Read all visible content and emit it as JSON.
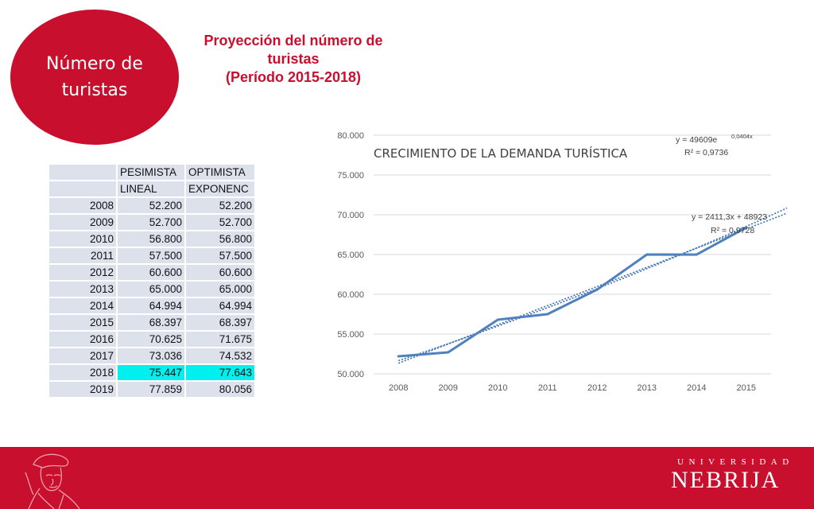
{
  "badge": {
    "title": "Número de turistas"
  },
  "slide_title": {
    "line1": "Proyección del número de",
    "line2": "turistas",
    "line3": "(Período 2015-2018)"
  },
  "table": {
    "headers": [
      [
        "",
        "PESIMISTA",
        "OPTIMISTA"
      ],
      [
        "",
        "LINEAL",
        "EXPONENC"
      ]
    ],
    "rows": [
      [
        "2008",
        "52.200",
        "52.200"
      ],
      [
        "2009",
        "52.700",
        "52.700"
      ],
      [
        "2010",
        "56.800",
        "56.800"
      ],
      [
        "2011",
        "57.500",
        "57.500"
      ],
      [
        "2012",
        "60.600",
        "60.600"
      ],
      [
        "2013",
        "65.000",
        "65.000"
      ],
      [
        "2014",
        "64.994",
        "64.994"
      ],
      [
        "2015",
        "68.397",
        "68.397"
      ],
      [
        "2016",
        "70.625",
        "71.675"
      ],
      [
        "2017",
        "73.036",
        "74.532"
      ],
      [
        "2018",
        "75.447",
        "77.643"
      ],
      [
        "2019",
        "77.859",
        "80.056"
      ]
    ],
    "highlight_row": "2018",
    "highlight_color": "#00f0f0"
  },
  "chart_data": {
    "type": "line",
    "title": "CRECIMIENTO DE LA DEMANDA TURÍSTICA",
    "categories": [
      "2008",
      "2009",
      "2010",
      "2011",
      "2012",
      "2013",
      "2014",
      "2015"
    ],
    "series": [
      {
        "values": [
          52200,
          52700,
          56800,
          57500,
          60600,
          65000,
          64994,
          68397
        ],
        "color": "#4f81bd"
      }
    ],
    "trendlines": [
      {
        "type": "exponential",
        "equation": "y = 49609e",
        "exponent": "0,0404x",
        "r2": "R² = 0,9736",
        "a": 49609,
        "b": 0.0404,
        "x_extend_to": 9
      },
      {
        "type": "linear",
        "equation": "y = 2411,3x + 48923",
        "r2": "R² = 0,9728",
        "slope": 2411.3,
        "intercept": 48923,
        "x_extend_to": 9
      }
    ],
    "ylim": [
      50000,
      80000
    ],
    "yticks": [
      "50.000",
      "55.000",
      "60.000",
      "65.000",
      "70.000",
      "75.000",
      "80.000"
    ],
    "grid": true,
    "colors": {
      "line": "#4f81bd",
      "trend": "#3a6fb5",
      "grid": "#d9d9d9"
    }
  },
  "footer": {
    "small": "UNIVERSIDAD",
    "big": "NEBRIJA",
    "color": "#c8102e"
  }
}
